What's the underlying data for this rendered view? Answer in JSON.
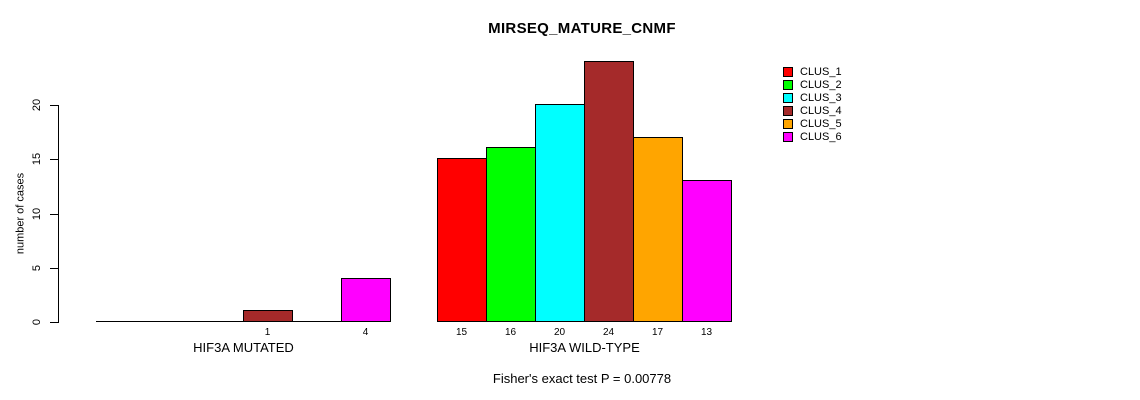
{
  "chart_data": {
    "type": "bar",
    "title": "MIRSEQ_MATURE_CNMF",
    "xlabel": "",
    "ylabel": "number of cases",
    "ylim": [
      0,
      24
    ],
    "yticks": [
      0,
      5,
      10,
      15,
      20
    ],
    "grid": false,
    "legend_position": "right",
    "series": [
      {
        "name": "CLUS_1",
        "color": "#FF0000"
      },
      {
        "name": "CLUS_2",
        "color": "#00FF00"
      },
      {
        "name": "CLUS_3",
        "color": "#00FFFF"
      },
      {
        "name": "CLUS_4",
        "color": "#A52A2A"
      },
      {
        "name": "CLUS_5",
        "color": "#FFA500"
      },
      {
        "name": "CLUS_6",
        "color": "#FF00FF"
      }
    ],
    "groups": [
      {
        "label": "HIF3A MUTATED",
        "values": [
          0,
          0,
          0,
          1,
          0,
          4
        ]
      },
      {
        "label": "HIF3A WILD-TYPE",
        "values": [
          15,
          16,
          20,
          24,
          17,
          13
        ]
      }
    ],
    "bar_value_labels_shown_for_nonzero_only": true,
    "annotation": "Fisher's exact test P = 0.00778"
  }
}
